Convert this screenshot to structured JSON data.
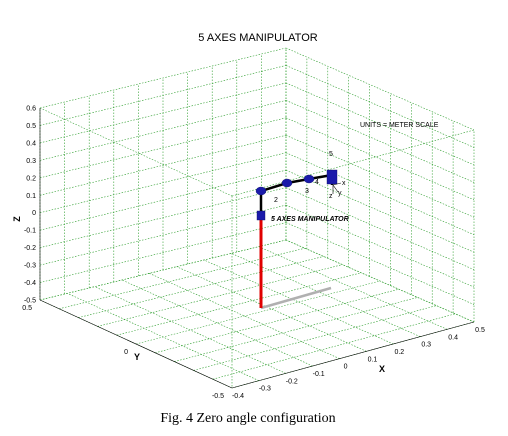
{
  "figure": {
    "title": "5 AXES MANIPULATOR",
    "caption": "Fig. 4 Zero angle configuration",
    "units_note": "UNITS = METER SCALE",
    "robot_label": "5 AXES MANIPULATOR",
    "joint_numbers": [
      "2",
      "3",
      "4",
      "5"
    ],
    "frame_axes": [
      "x",
      "y",
      "z"
    ]
  },
  "axes": {
    "x_label": "X",
    "y_label": "Y",
    "z_label": "Z",
    "z_ticks": [
      "0.6",
      "0.5",
      "0.4",
      "0.3",
      "0.2",
      "0.1",
      "0",
      "-0.1",
      "-0.2",
      "-0.3",
      "-0.4",
      "-0.5"
    ],
    "x_ticks": [
      "-0.4",
      "-0.3",
      "-0.2",
      "-0.1",
      "0",
      "0.1",
      "0.2",
      "0.3",
      "0.4",
      "0.5"
    ],
    "y_ticks": [
      "0.5",
      "0",
      "-0.5"
    ]
  },
  "colors": {
    "grid": "#2e9e2e",
    "base": "#e00000",
    "links": "#000000",
    "joints": "#1a1aaa",
    "shadow": "#b0b0b0"
  }
}
